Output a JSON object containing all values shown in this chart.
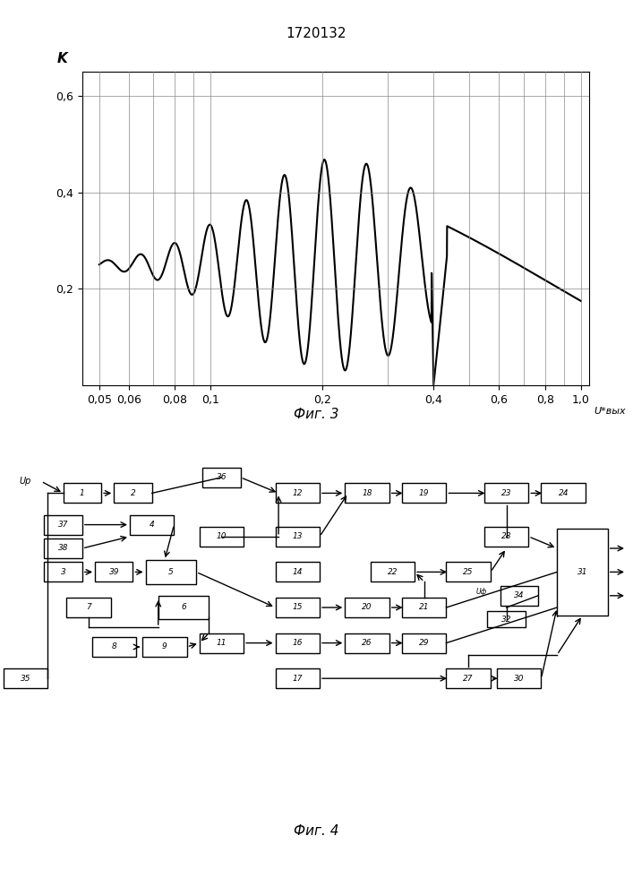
{
  "title": "1720132",
  "fig3_label": "Фиг. 3",
  "fig4_label": "Фиг. 4",
  "fig3_ylabel": "K",
  "fig3_xlabel": "U*вых",
  "fig3_xticks": [
    0.05,
    0.06,
    0.08,
    0.1,
    0.2,
    0.4,
    0.6,
    0.8,
    1.0
  ],
  "fig3_xtick_labels": [
    "0,05",
    "0,06",
    "0,08",
    "0,1",
    "0,2",
    "0,4",
    "0,6",
    "0,8",
    "1,0"
  ],
  "fig3_yticks": [
    0.2,
    0.4,
    0.6
  ],
  "fig3_ytick_labels": [
    "0,2",
    "0,4",
    "0,6"
  ],
  "fig3_xlim": [
    0.04,
    1.05
  ],
  "fig3_ylim": [
    0.0,
    0.65
  ],
  "background_color": "#ffffff",
  "line_color": "#000000",
  "grid_color": "#888888"
}
